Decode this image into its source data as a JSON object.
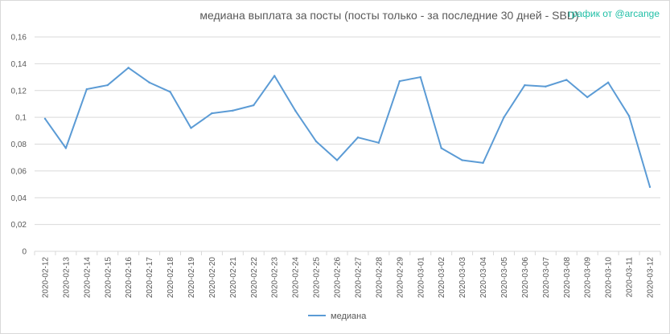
{
  "title": "медиана выплата за посты  (посты только - за последние 30 дней - SBD)",
  "credit": "график от @arcange",
  "colors": {
    "series": "#5b9bd5",
    "grid": "#d9d9d9",
    "credit": "#1fbfa6"
  },
  "chart_data": {
    "type": "line",
    "title": "медиана выплата за посты  (посты только - за последние 30 дней - SBD)",
    "xlabel": "",
    "ylabel": "",
    "ylim": [
      0,
      0.16
    ],
    "yticks": [
      "0",
      "0,02",
      "0,04",
      "0,06",
      "0,08",
      "0,1",
      "0,12",
      "0,14",
      "0,16"
    ],
    "ytick_values": [
      0,
      0.02,
      0.04,
      0.06,
      0.08,
      0.1,
      0.12,
      0.14,
      0.16
    ],
    "grid": true,
    "legend_position": "bottom",
    "categories": [
      "2020-02-12",
      "2020-02-13",
      "2020-02-14",
      "2020-02-15",
      "2020-02-16",
      "2020-02-17",
      "2020-02-18",
      "2020-02-19",
      "2020-02-20",
      "2020-02-21",
      "2020-02-22",
      "2020-02-23",
      "2020-02-24",
      "2020-02-25",
      "2020-02-26",
      "2020-02-27",
      "2020-02-28",
      "2020-02-29",
      "2020-03-01",
      "2020-03-02",
      "2020-03-03",
      "2020-03-04",
      "2020-03-05",
      "2020-03-06",
      "2020-03-07",
      "2020-03-08",
      "2020-03-09",
      "2020-03-10",
      "2020-03-11",
      "2020-03-12"
    ],
    "series": [
      {
        "name": "медиана",
        "values": [
          0.099,
          0.077,
          0.121,
          0.124,
          0.137,
          0.126,
          0.119,
          0.092,
          0.103,
          0.105,
          0.109,
          0.131,
          0.105,
          0.082,
          0.068,
          0.085,
          0.081,
          0.127,
          0.13,
          0.077,
          0.068,
          0.066,
          0.1,
          0.124,
          0.123,
          0.128,
          0.115,
          0.126,
          0.101,
          0.048
        ]
      }
    ]
  }
}
